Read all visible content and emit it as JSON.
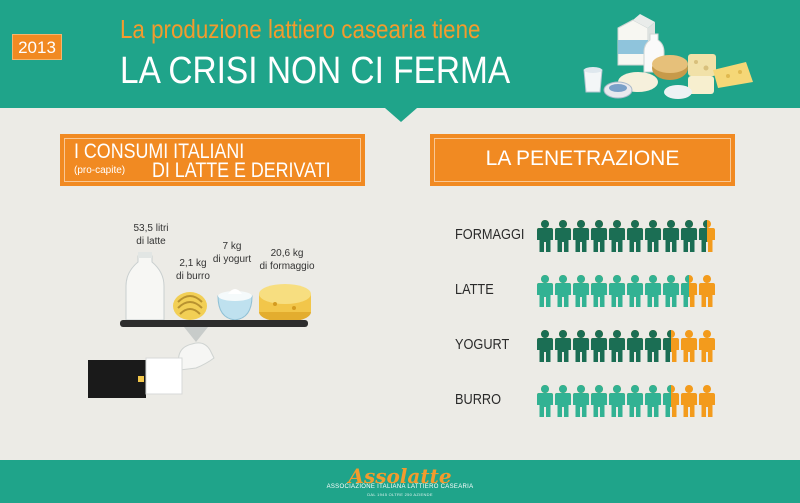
{
  "header": {
    "year": "2013",
    "subtitle": "La produzione lattiero casearia tiene",
    "title": "LA CRISI NON CI FERMA"
  },
  "consumi": {
    "title_line1": "I CONSUMI ITALIANI",
    "title_small": "(pro-capite)",
    "title_line2": "DI LATTE E DERIVATI",
    "items": [
      {
        "line1": "53,5 litri",
        "line2": "di latte"
      },
      {
        "line1": "2,1 kg",
        "line2": "di burro"
      },
      {
        "line1": "7 kg",
        "line2": "di yogurt"
      },
      {
        "line1": "20,6 kg",
        "line2": "di formaggio"
      }
    ]
  },
  "penetrazione": {
    "title": "LA PENETRAZIONE",
    "rows": [
      {
        "label": "FORMAGGI",
        "dark": 9.5,
        "mid": 0,
        "orange": 0.5
      },
      {
        "label": "LATTE",
        "dark": 0,
        "mid": 8.5,
        "orange": 1.5
      },
      {
        "label": "YOGURT",
        "dark": 7.5,
        "mid": 0,
        "orange": 2.5
      },
      {
        "label": "BURRO",
        "dark": 0,
        "mid": 7.5,
        "orange": 2.5
      }
    ]
  },
  "footer": {
    "brand": "Assolatte",
    "tagline": "ASSOCIAZIONE ITALIANA LATTIERO CASEARIA",
    "tagline2": "DAL 1945 OLTRE 250 AZIENDE"
  },
  "colors": {
    "teal": "#1fa48a",
    "orange": "#f18a22",
    "person_dark": "#1b6e54",
    "person_mid": "#32b293",
    "person_orange": "#f39b1c"
  }
}
